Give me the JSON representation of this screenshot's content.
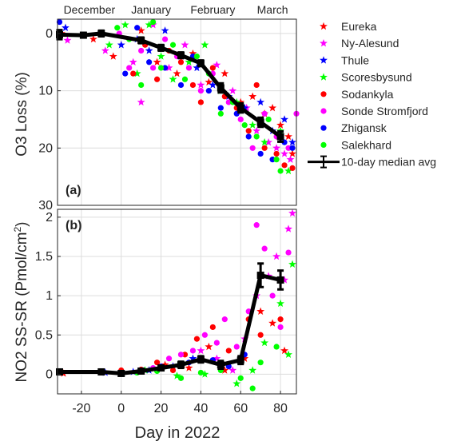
{
  "chart_data": {
    "type": "scatter",
    "shared_xlabel": "Day in 2022",
    "xlim": [
      -32,
      88
    ],
    "xticks": [
      -20,
      0,
      20,
      40,
      60,
      80
    ],
    "month_labels": [
      "December",
      "January",
      "February",
      "March"
    ],
    "month_centers": [
      -16,
      15,
      46,
      76
    ],
    "legend": {
      "placement": "outside-right",
      "entries": [
        {
          "name": "Eureka",
          "marker": "star",
          "color": "#ff0000"
        },
        {
          "name": "Ny-Alesund",
          "marker": "star",
          "color": "#ff00ff"
        },
        {
          "name": "Thule",
          "marker": "star",
          "color": "#0000ff"
        },
        {
          "name": "Scoresbysund",
          "marker": "star",
          "color": "#00ff00"
        },
        {
          "name": "Sodankyla",
          "marker": "circle",
          "color": "#ff0000"
        },
        {
          "name": "Sonde Stromfjord",
          "marker": "circle",
          "color": "#ff00ff"
        },
        {
          "name": "Zhigansk",
          "marker": "circle",
          "color": "#0000ff"
        },
        {
          "name": "Salekhard",
          "marker": "circle",
          "color": "#00ff00"
        },
        {
          "name": "10-day median avg",
          "marker": "errorbar",
          "color": "#000000"
        }
      ]
    },
    "panels": [
      {
        "label": "(a)",
        "ylabel": "O3 Loss (%)",
        "ylim": [
          -2.5,
          30
        ],
        "y_reversed": true,
        "yticks": [
          0,
          10,
          20,
          30
        ],
        "grid": true,
        "median": [
          {
            "x": -31,
            "y": 0.2,
            "err": 0.8
          },
          {
            "x": -19,
            "y": 0.3,
            "err": 0.4
          },
          {
            "x": -10,
            "y": 0.0,
            "err": 0.5
          },
          {
            "x": 10,
            "y": 1.2,
            "err": 0.5
          },
          {
            "x": 20,
            "y": 2.5,
            "err": 0.5
          },
          {
            "x": 30,
            "y": 3.8,
            "err": 0.5
          },
          {
            "x": 40,
            "y": 5.2,
            "err": 0.5
          },
          {
            "x": 50,
            "y": 9.5,
            "err": 0.8
          },
          {
            "x": 60,
            "y": 13.0,
            "err": 0.8
          },
          {
            "x": 70,
            "y": 15.5,
            "err": 0.8
          },
          {
            "x": 80,
            "y": 18.0,
            "err": 0.9
          }
        ],
        "scatter_by_station": [
          [
            [
              -30,
              0
            ],
            [
              -14,
              1
            ],
            [
              -4,
              4
            ],
            [
              10,
              -0.5
            ],
            [
              18,
              5
            ],
            [
              28,
              7
            ],
            [
              36,
              3.5
            ],
            [
              44,
              8.5
            ],
            [
              52,
              7
            ],
            [
              60,
              12
            ],
            [
              66,
              11
            ],
            [
              72,
              14
            ],
            [
              76,
              13
            ],
            [
              80,
              16
            ],
            [
              84,
              18
            ],
            [
              86,
              21
            ]
          ],
          [
            [
              -27,
              1.2
            ],
            [
              -8,
              3
            ],
            [
              6,
              5
            ],
            [
              10,
              12
            ],
            [
              16,
              -1.5
            ],
            [
              24,
              6
            ],
            [
              32,
              2
            ],
            [
              40,
              9
            ],
            [
              48,
              5.5
            ],
            [
              56,
              10
            ],
            [
              63,
              13
            ],
            [
              68,
              17
            ],
            [
              74,
              19
            ],
            [
              78,
              20
            ],
            [
              82,
              21
            ],
            [
              85,
              22
            ]
          ],
          [
            [
              -28,
              -1
            ],
            [
              0,
              2
            ],
            [
              8,
              1
            ],
            [
              14,
              3
            ],
            [
              22,
              -0.5
            ],
            [
              30,
              4
            ],
            [
              38,
              6
            ],
            [
              46,
              9
            ],
            [
              54,
              11
            ],
            [
              62,
              13
            ],
            [
              70,
              12
            ],
            [
              76,
              17
            ],
            [
              82,
              15
            ],
            [
              86,
              19
            ]
          ],
          [
            [
              -6,
              2
            ],
            [
              2,
              -1.5
            ],
            [
              8,
              7
            ],
            [
              14,
              -1.5
            ],
            [
              20,
              4
            ],
            [
              26,
              8
            ],
            [
              34,
              5
            ],
            [
              42,
              2
            ],
            [
              50,
              10
            ],
            [
              58,
              12
            ],
            [
              66,
              16
            ],
            [
              72,
              19
            ],
            [
              80,
              17
            ],
            [
              84,
              24
            ]
          ],
          [
            [
              6,
              7
            ],
            [
              12,
              2
            ],
            [
              18,
              8
            ],
            [
              24,
              3
            ],
            [
              30,
              5
            ],
            [
              36,
              9
            ],
            [
              40,
              12
            ],
            [
              46,
              6
            ],
            [
              52,
              11
            ],
            [
              58,
              13
            ],
            [
              64,
              17
            ],
            [
              68,
              9
            ],
            [
              72,
              20
            ],
            [
              78,
              21
            ],
            [
              82,
              23
            ],
            [
              86,
              23.5
            ]
          ],
          [
            [
              -1,
              0
            ],
            [
              4,
              6
            ],
            [
              10,
              3
            ],
            [
              16,
              6
            ],
            [
              22,
              1
            ],
            [
              28,
              4
            ],
            [
              34,
              6
            ],
            [
              40,
              10
            ],
            [
              46,
              7
            ],
            [
              54,
              12
            ],
            [
              60,
              15
            ],
            [
              66,
              20
            ],
            [
              72,
              14
            ],
            [
              78,
              18
            ],
            [
              84,
              20
            ],
            [
              88,
              14
            ]
          ],
          [
            [
              -31,
              -2
            ],
            [
              2,
              7
            ],
            [
              8,
              -1
            ],
            [
              14,
              5
            ],
            [
              22,
              6
            ],
            [
              30,
              9
            ],
            [
              36,
              4
            ],
            [
              44,
              10
            ],
            [
              50,
              13
            ],
            [
              58,
              14
            ],
            [
              64,
              18
            ],
            [
              70,
              21
            ],
            [
              76,
              22
            ],
            [
              82,
              19
            ],
            [
              86,
              20
            ]
          ],
          [
            [
              -2,
              -1
            ],
            [
              4,
              1
            ],
            [
              10,
              9
            ],
            [
              16,
              -2
            ],
            [
              20,
              6
            ],
            [
              26,
              2
            ],
            [
              32,
              8
            ],
            [
              38,
              4
            ],
            [
              44,
              7
            ],
            [
              50,
              14
            ],
            [
              56,
              12
            ],
            [
              62,
              16
            ],
            [
              68,
              18
            ],
            [
              74,
              15
            ],
            [
              78,
              22
            ],
            [
              80,
              24
            ]
          ]
        ]
      },
      {
        "label": "(b)",
        "ylabel": "NO2 SS-SR (Pmol/cm²)",
        "ylim": [
          -0.25,
          2.1
        ],
        "y_reversed": false,
        "yticks": [
          0,
          0.5,
          1,
          1.5,
          2
        ],
        "ytick_labels": [
          "0",
          "0.5",
          "1",
          "1.5",
          "2"
        ],
        "grid": true,
        "median": [
          {
            "x": -31,
            "y": 0.03,
            "err": 0.03
          },
          {
            "x": -10,
            "y": 0.03,
            "err": 0.03
          },
          {
            "x": 0,
            "y": 0.01,
            "err": 0.02
          },
          {
            "x": 10,
            "y": 0.04,
            "err": 0.02
          },
          {
            "x": 20,
            "y": 0.08,
            "err": 0.03
          },
          {
            "x": 30,
            "y": 0.12,
            "err": 0.04
          },
          {
            "x": 40,
            "y": 0.19,
            "err": 0.04
          },
          {
            "x": 50,
            "y": 0.12,
            "err": 0.05
          },
          {
            "x": 60,
            "y": 0.18,
            "err": 0.05
          },
          {
            "x": 70,
            "y": 1.26,
            "err": 0.15
          },
          {
            "x": 80,
            "y": 1.2,
            "err": 0.12
          }
        ],
        "scatter_by_station": [
          [
            [
              -29,
              0.01
            ],
            [
              22,
              0.12
            ],
            [
              34,
              0.08
            ],
            [
              44,
              0.35
            ],
            [
              52,
              0.05
            ],
            [
              62,
              0.2
            ],
            [
              70,
              0.8
            ],
            [
              76,
              0.65
            ],
            [
              82,
              0.3
            ]
          ],
          [
            [
              40,
              0.3
            ],
            [
              48,
              0.2
            ],
            [
              56,
              0.05
            ],
            [
              62,
              0.45
            ],
            [
              68,
              1.0
            ],
            [
              74,
              1.25
            ],
            [
              78,
              1.5
            ],
            [
              82,
              1.2
            ],
            [
              84,
              1.85
            ],
            [
              86,
              2.05
            ]
          ],
          [
            [
              -8,
              0.02
            ],
            [
              6,
              0.03
            ],
            [
              14,
              0.05
            ],
            [
              26,
              0.1
            ],
            [
              36,
              0.2
            ]
          ],
          [
            [
              12,
              0.05
            ],
            [
              28,
              -0.02
            ],
            [
              42,
              0.0
            ],
            [
              58,
              -0.12
            ],
            [
              66,
              0.05
            ],
            [
              72,
              0.4
            ],
            [
              80,
              0.9
            ],
            [
              84,
              0.25
            ],
            [
              86,
              1.4
            ]
          ],
          [
            [
              0,
              0.05
            ],
            [
              10,
              0.06
            ],
            [
              18,
              0.15
            ],
            [
              26,
              0.05
            ],
            [
              32,
              0.25
            ],
            [
              38,
              0.45
            ],
            [
              46,
              0.6
            ],
            [
              54,
              0.3
            ],
            [
              64,
              0.7
            ],
            [
              70,
              0.5
            ],
            [
              80,
              0.7
            ]
          ],
          [
            [
              16,
              0.08
            ],
            [
              24,
              0.2
            ],
            [
              30,
              0.25
            ],
            [
              36,
              0.3
            ],
            [
              42,
              0.5
            ],
            [
              48,
              0.4
            ],
            [
              52,
              0.7
            ],
            [
              58,
              0.35
            ],
            [
              64,
              0.8
            ],
            [
              68,
              1.9
            ],
            [
              72,
              1.6
            ],
            [
              76,
              1.0
            ],
            [
              80,
              0.6
            ],
            [
              84,
              1.55
            ]
          ],
          [
            [
              20,
              0.1
            ],
            [
              34,
              0.15
            ],
            [
              46,
              0.18
            ],
            [
              54,
              0.1
            ],
            [
              62,
              0.25
            ]
          ],
          [
            [
              8,
              0.02
            ],
            [
              18,
              0.04
            ],
            [
              30,
              -0.05
            ],
            [
              40,
              0.02
            ],
            [
              50,
              0.05
            ],
            [
              60,
              -0.05
            ],
            [
              66,
              -0.18
            ],
            [
              70,
              0.15
            ],
            [
              78,
              0.35
            ]
          ]
        ]
      }
    ]
  }
}
